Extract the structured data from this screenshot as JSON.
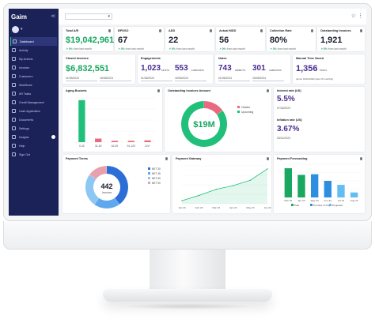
{
  "sidebar": {
    "logo": "Gaim",
    "collapse_symbol": "≪",
    "items": [
      {
        "label": "Dashboard",
        "active": true
      },
      {
        "label": "Activity"
      },
      {
        "label": "My Actions"
      },
      {
        "label": "Invoices"
      },
      {
        "label": "Customers"
      },
      {
        "label": "Workflows"
      },
      {
        "label": "AR Tasks"
      },
      {
        "label": "Credit Management"
      },
      {
        "label": "Cash Application"
      },
      {
        "label": "Documents"
      },
      {
        "label": "Settings"
      },
      {
        "label": "Insights",
        "badge": true
      },
      {
        "label": "Help"
      },
      {
        "label": "Sign Out"
      }
    ]
  },
  "topbar": {
    "dropdown_symbol": "▾",
    "star": "☆",
    "menu": "⋮"
  },
  "kpis": {
    "total_ar": {
      "title": "Total A/R",
      "value": "$19,042,961",
      "trend_pct": "0%",
      "trend_text": "from last month"
    },
    "bpdso": {
      "title": "BPDSO",
      "value": "67",
      "trend_pct": "0%",
      "trend_text": "from last month"
    },
    "add": {
      "title": "ADD",
      "value": "22",
      "trend_pct": "0%",
      "trend_text": "from last month"
    },
    "actual_mdd": {
      "title": "Actual MDD",
      "value": "56",
      "trend_pct": "0%",
      "trend_text": "from last month"
    },
    "collection_rate": {
      "title": "Collection Rate",
      "value": "80%",
      "trend_pct": "0%",
      "trend_text": "from last month"
    },
    "outstanding_invoices": {
      "title": "Outstanding Invoices",
      "value": "1,921",
      "trend_pct": "0%",
      "trend_text": "from last month"
    }
  },
  "closed_invoices": {
    "title": "Closed Invoices",
    "value": "$6,832,551",
    "from_date": "01/06/2024",
    "to_date": "15/06/2024"
  },
  "engagements": {
    "title": "Engagements",
    "value1": "1,023",
    "label1": "sent to",
    "value2": "553",
    "label2": "customers",
    "from_date": "01/06/2024",
    "to_date": "15/06/2024"
  },
  "notes": {
    "title": "Notes",
    "value1": "743",
    "label1": "added to",
    "value2": "301",
    "label2": "customers",
    "from_date": "01/06/2024",
    "to_date": "15/06/2024"
  },
  "manual_time_saved": {
    "title": "Manual Time Saved",
    "value": "1,356",
    "unit": "Hours",
    "since": "(since 01/10/2022 (last 15 months))"
  },
  "aging_buckets": {
    "title": "Aging Buckets",
    "chart_data": {
      "type": "bar",
      "categories": [
        "0-30",
        "31-60",
        "61-90",
        "91-120",
        "121+"
      ],
      "values": [
        95,
        8,
        3,
        3,
        4
      ],
      "colors": [
        "#21c07a",
        "#e96a7e",
        "#e96a7e",
        "#e96a7e",
        "#e96a7e"
      ],
      "ylim": [
        0,
        100
      ]
    }
  },
  "outstanding_amount": {
    "title": "Outstanding Invoices Amount",
    "center_label": "$19M",
    "chart_data": {
      "type": "pie",
      "labels": [
        "Outdue",
        "Upcoming"
      ],
      "values": [
        15,
        85
      ],
      "colors": [
        "#e96a7e",
        "#21c07a"
      ]
    }
  },
  "interest_rate": {
    "title": "Interest rate (US)",
    "value": "5.5%",
    "date": "07/26/2023"
  },
  "inflation_rate": {
    "title": "Inflation rate (US)",
    "value": "3.67%",
    "date": "05/01/2023"
  },
  "payment_terms": {
    "title": "Payment Terms",
    "center_value": "442",
    "center_label": "Invoices",
    "chart_data": {
      "type": "pie",
      "labels": [
        "NET 30",
        "NET 45",
        "NET 60",
        "NET 90"
      ],
      "values": [
        40,
        20,
        25,
        15
      ],
      "colors": [
        "#2b6fd6",
        "#5fa8ee",
        "#8dc7f4",
        "#e9a0ae"
      ]
    }
  },
  "payment_gateway": {
    "title": "Payment Gateway",
    "chart_data": {
      "type": "area",
      "categories": [
        "Jan 23",
        "Feb 23",
        "Mar 23",
        "Apr 23",
        "May 23",
        "Jun 23"
      ],
      "values": [
        8,
        22,
        38,
        48,
        62,
        92
      ],
      "ylim": [
        0,
        100
      ],
      "color": "#21c07a"
    }
  },
  "payment_forecasting": {
    "title": "Payment Forecasting",
    "chart_data": {
      "type": "bar",
      "categories": [
        "Mar 23",
        "Apr 23",
        "May 23",
        "Jun 23",
        "Jul 23",
        "Aug 23"
      ],
      "values": [
        88,
        68,
        70,
        50,
        38,
        15
      ],
      "colors": [
        "#1aa760",
        "#1aa760",
        "#2e8fe0",
        "#2e8fe0",
        "#63bdf2",
        "#63bdf2"
      ],
      "legend": [
        "Past",
        "Promise To Pay",
        "Projected"
      ],
      "legend_colors": [
        "#1aa760",
        "#2e8fe0",
        "#63bdf2"
      ],
      "ylim": [
        0,
        100
      ]
    }
  }
}
